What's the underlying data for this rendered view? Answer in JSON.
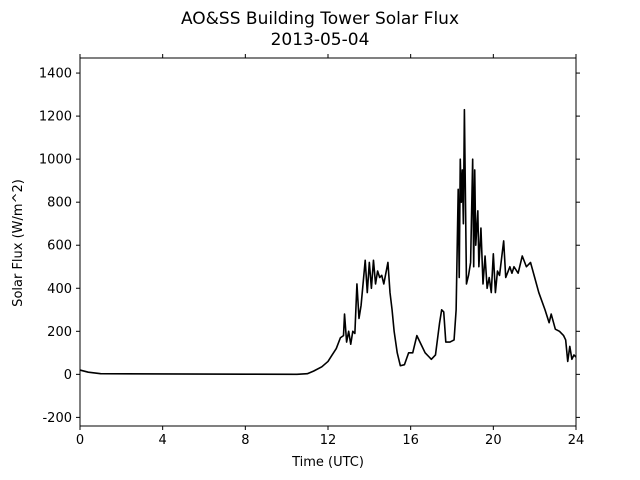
{
  "chart_data": {
    "type": "line",
    "title": "AO&SS Building Tower Solar Flux",
    "subtitle": "2013-05-04",
    "x_label": "Time (UTC)",
    "y_label": "Solar Flux (W/m^2)",
    "xlim": [
      0,
      24
    ],
    "xticks": [
      0,
      4,
      8,
      12,
      16,
      20,
      24
    ],
    "ylim": [
      -240,
      1470
    ],
    "yticks": [
      -200,
      0,
      200,
      400,
      600,
      800,
      1000,
      1200,
      1400
    ],
    "grid": false,
    "series": [
      {
        "name": "Solar Flux",
        "color": "#000000",
        "x": [
          0,
          0.4,
          1,
          4,
          8,
          10.5,
          11,
          11.3,
          11.7,
          12,
          12.2,
          12.4,
          12.6,
          12.75,
          12.8,
          12.9,
          13,
          13.1,
          13.2,
          13.3,
          13.4,
          13.5,
          13.6,
          13.8,
          13.9,
          14,
          14.1,
          14.2,
          14.3,
          14.4,
          14.5,
          14.6,
          14.7,
          14.9,
          15,
          15.1,
          15.2,
          15.35,
          15.5,
          15.7,
          15.9,
          16.1,
          16.3,
          16.5,
          16.7,
          16.9,
          17,
          17.2,
          17.4,
          17.5,
          17.6,
          17.7,
          17.9,
          18.1,
          18.2,
          18.3,
          18.35,
          18.4,
          18.45,
          18.5,
          18.55,
          18.6,
          18.7,
          18.8,
          18.9,
          19,
          19.05,
          19.1,
          19.15,
          19.25,
          19.3,
          19.4,
          19.5,
          19.6,
          19.7,
          19.8,
          19.9,
          20,
          20.1,
          20.2,
          20.3,
          20.5,
          20.6,
          20.8,
          20.9,
          21,
          21.2,
          21.4,
          21.6,
          21.8,
          22,
          22.2,
          22.5,
          22.7,
          22.8,
          23,
          23.2,
          23.4,
          23.5,
          23.6,
          23.7,
          23.8,
          23.9,
          24
        ],
        "values": [
          20,
          10,
          3,
          2,
          1,
          0,
          3,
          15,
          35,
          60,
          90,
          120,
          170,
          180,
          280,
          150,
          200,
          140,
          200,
          190,
          420,
          260,
          320,
          530,
          380,
          520,
          400,
          530,
          420,
          480,
          450,
          460,
          420,
          520,
          380,
          300,
          200,
          100,
          40,
          45,
          100,
          100,
          180,
          140,
          100,
          80,
          70,
          90,
          240,
          300,
          290,
          150,
          150,
          160,
          300,
          860,
          450,
          1000,
          800,
          950,
          700,
          1230,
          420,
          460,
          520,
          1000,
          500,
          950,
          600,
          760,
          500,
          680,
          420,
          550,
          400,
          450,
          380,
          560,
          380,
          480,
          460,
          620,
          450,
          500,
          470,
          500,
          470,
          550,
          500,
          520,
          450,
          380,
          300,
          240,
          280,
          210,
          200,
          180,
          160,
          60,
          130,
          70,
          90,
          80
        ]
      }
    ]
  }
}
